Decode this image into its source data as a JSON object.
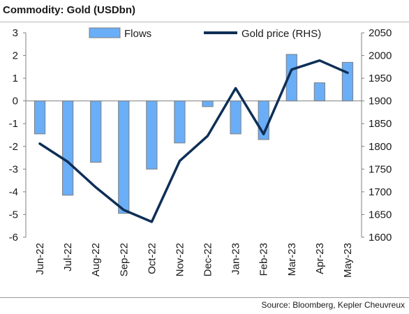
{
  "header": {
    "title": "Commodity: Gold (USDbn)"
  },
  "footer": {
    "source": "Source: Bloomberg, Kepler Cheuvreux"
  },
  "colors": {
    "bar_fill": "#6aaef7",
    "bar_stroke": "#7f7f7f",
    "line": "#0e2f56",
    "axis": "#7f7f7f"
  },
  "chart_data": {
    "type": "bar+line",
    "title": "Commodity: Gold (USDbn)",
    "categories": [
      "Jun-22",
      "Jul-22",
      "Aug-22",
      "Sep-22",
      "Oct-22",
      "Nov-22",
      "Dec-22",
      "Jan-23",
      "Feb-23",
      "Mar-23",
      "Apr-23",
      "May-23"
    ],
    "series": [
      {
        "name": "Flows",
        "kind": "bar",
        "axis": "left",
        "values": [
          -1.45,
          -4.15,
          -2.7,
          -4.95,
          -3.0,
          -1.85,
          -0.25,
          -1.45,
          -1.7,
          2.05,
          0.8,
          1.7
        ]
      },
      {
        "name": "Gold price (RHS)",
        "kind": "line",
        "axis": "right",
        "values": [
          1806,
          1766,
          1710,
          1660,
          1634,
          1768,
          1823,
          1928,
          1827,
          1969,
          1989,
          1962
        ]
      }
    ],
    "ylim_left": [
      -6,
      3
    ],
    "yticks_left": [
      "3",
      "2",
      "1",
      "0",
      "-1",
      "-2",
      "-3",
      "-4",
      "-5",
      "-6"
    ],
    "ylim_right": [
      1600,
      2050
    ],
    "yticks_right": [
      "2050",
      "2000",
      "1950",
      "1900",
      "1850",
      "1800",
      "1750",
      "1700",
      "1650",
      "1600"
    ],
    "legend": "top-center",
    "grid": false
  }
}
